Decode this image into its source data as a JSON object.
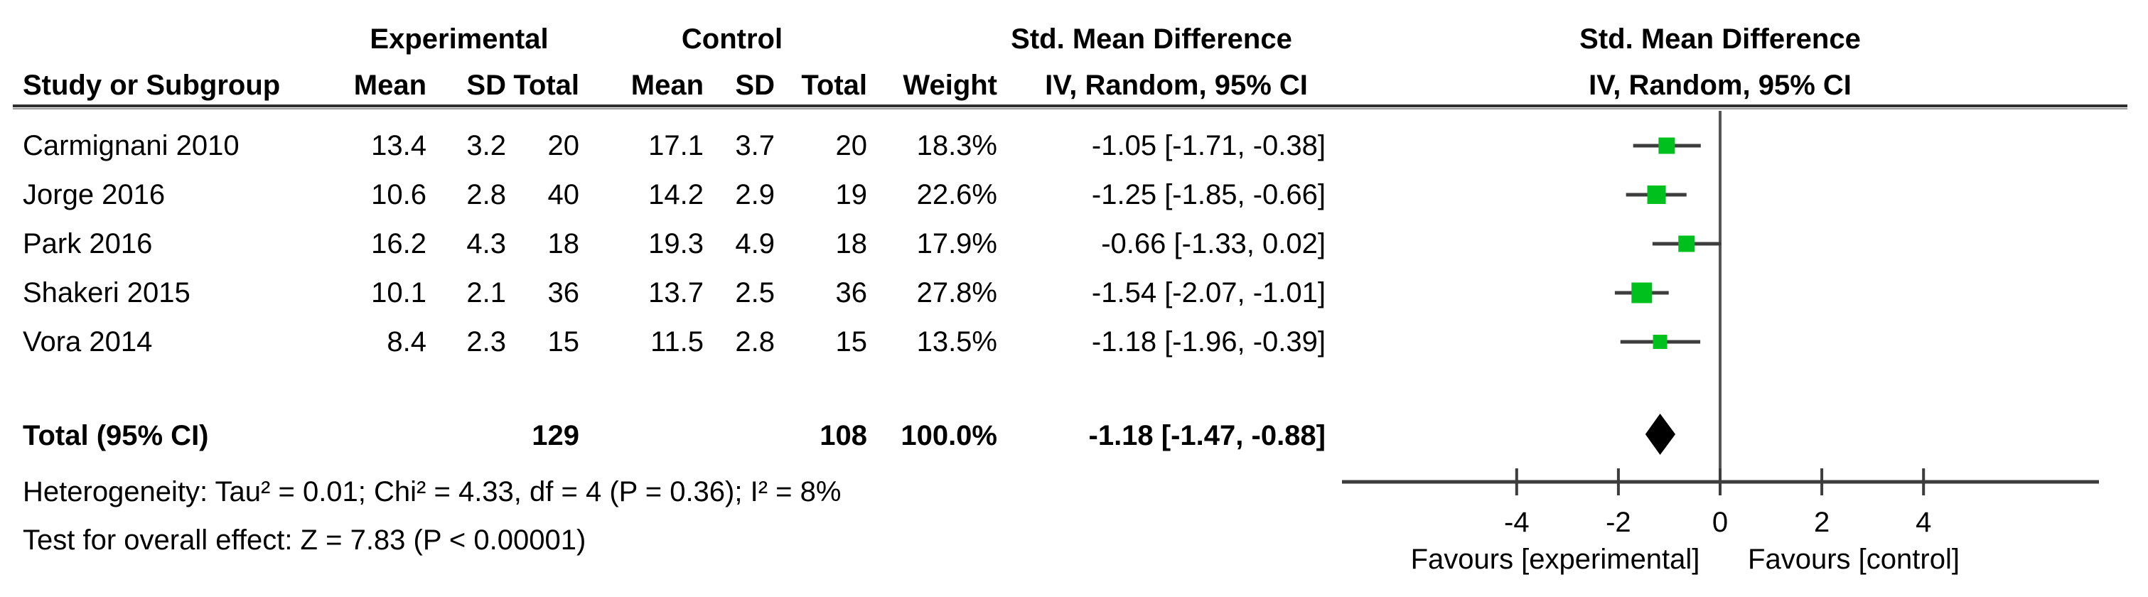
{
  "table": {
    "group_headers": {
      "experimental": "Experimental",
      "control": "Control",
      "smd": "Std. Mean Difference"
    },
    "col_headers": {
      "study": "Study or Subgroup",
      "mean_e": "Mean",
      "sd_e": "SD",
      "total_e": "Total",
      "mean_c": "Mean",
      "sd_c": "SD",
      "total_c": "Total",
      "weight": "Weight",
      "iv": "IV, Random, 95% CI"
    },
    "rows": [
      {
        "study": "Carmignani 2010",
        "mean_e": "13.4",
        "sd_e": "3.2",
        "total_e": "20",
        "mean_c": "17.1",
        "sd_c": "3.7",
        "total_c": "20",
        "weight": "18.3%",
        "ci": "-1.05 [-1.71, -0.38]"
      },
      {
        "study": "Jorge 2016",
        "mean_e": "10.6",
        "sd_e": "2.8",
        "total_e": "40",
        "mean_c": "14.2",
        "sd_c": "2.9",
        "total_c": "19",
        "weight": "22.6%",
        "ci": "-1.25 [-1.85, -0.66]"
      },
      {
        "study": "Park 2016",
        "mean_e": "16.2",
        "sd_e": "4.3",
        "total_e": "18",
        "mean_c": "19.3",
        "sd_c": "4.9",
        "total_c": "18",
        "weight": "17.9%",
        "ci": "-0.66 [-1.33, 0.02]"
      },
      {
        "study": "Shakeri 2015",
        "mean_e": "10.1",
        "sd_e": "2.1",
        "total_e": "36",
        "mean_c": "13.7",
        "sd_c": "2.5",
        "total_c": "36",
        "weight": "27.8%",
        "ci": "-1.54 [-2.07, -1.01]"
      },
      {
        "study": "Vora 2014",
        "mean_e": "8.4",
        "sd_e": "2.3",
        "total_e": "15",
        "mean_c": "11.5",
        "sd_c": "2.8",
        "total_c": "15",
        "weight": "13.5%",
        "ci": "-1.18 [-1.96, -0.39]"
      }
    ],
    "total_row": {
      "label": "Total (95% CI)",
      "total_e": "129",
      "total_c": "108",
      "weight": "100.0%",
      "ci": "-1.18 [-1.47, -0.88]"
    },
    "footnotes": {
      "heterogeneity": "Heterogeneity: Tau² = 0.01; Chi² = 4.33, df = 4 (P = 0.36); I² = 8%",
      "overall_effect": "Test for overall effect: Z = 7.83 (P < 0.00001)"
    }
  },
  "plot_headers": {
    "line1": "Std. Mean Difference",
    "line2": "IV, Random, 95% CI"
  },
  "chart_data": {
    "type": "forest",
    "effect_measure": "Std. Mean Difference",
    "model": "IV, Random, 95% CI",
    "studies": [
      {
        "label": "Carmignani 2010",
        "smd": -1.05,
        "ci": [
          -1.71,
          -0.38
        ],
        "weight_pct": 18.3
      },
      {
        "label": "Jorge 2016",
        "smd": -1.25,
        "ci": [
          -1.85,
          -0.66
        ],
        "weight_pct": 22.6
      },
      {
        "label": "Park 2016",
        "smd": -0.66,
        "ci": [
          -1.33,
          0.02
        ],
        "weight_pct": 17.9
      },
      {
        "label": "Shakeri 2015",
        "smd": -1.54,
        "ci": [
          -2.07,
          -1.01
        ],
        "weight_pct": 27.8
      },
      {
        "label": "Vora 2014",
        "smd": -1.18,
        "ci": [
          -1.96,
          -0.39
        ],
        "weight_pct": 13.5
      }
    ],
    "total": {
      "label": "Total (95% CI)",
      "smd": -1.18,
      "ci": [
        -1.47,
        -0.88
      ]
    },
    "axis": {
      "ticks": [
        -4,
        -2,
        0,
        2,
        4
      ],
      "xlim": [
        -7.4,
        7.4
      ],
      "zero_line": true
    },
    "favours_left": "Favours [experimental]",
    "favours_right": "Favours [control]",
    "colors": {
      "marker": "#00c01e",
      "ci_line": "#3d3d3d",
      "axis": "#3d3d3d",
      "zero_line": "#555555",
      "diamond": "#000000"
    }
  }
}
